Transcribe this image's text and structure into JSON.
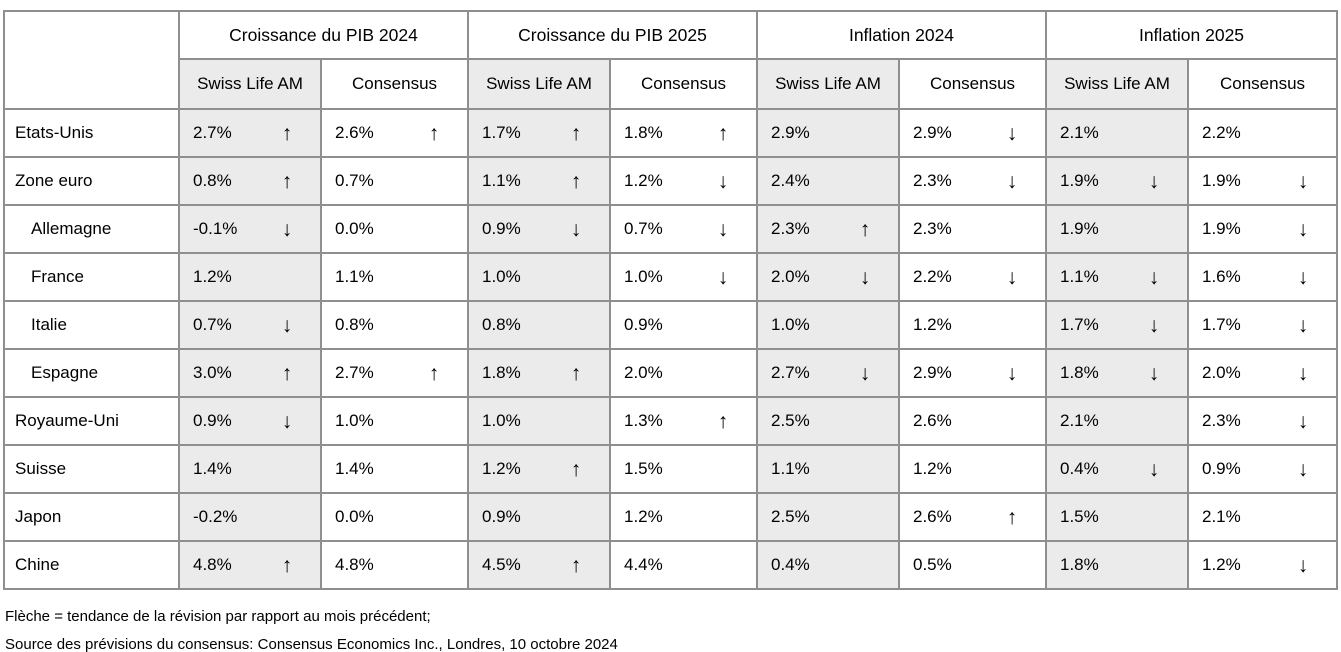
{
  "table": {
    "column_groups": [
      "Croissance du PIB 2024",
      "Croissance du PIB 2025",
      "Inflation 2024",
      "Inflation 2025"
    ],
    "subheaders": {
      "swiss_life": "Swiss Life AM",
      "consensus": "Consensus"
    },
    "rows": [
      {
        "country": "Etats-Unis",
        "indent": false,
        "cells": [
          {
            "value": "2.7%",
            "arrow": "up"
          },
          {
            "value": "2.6%",
            "arrow": "up"
          },
          {
            "value": "1.7%",
            "arrow": "up"
          },
          {
            "value": "1.8%",
            "arrow": "up"
          },
          {
            "value": "2.9%",
            "arrow": ""
          },
          {
            "value": "2.9%",
            "arrow": "down"
          },
          {
            "value": "2.1%",
            "arrow": ""
          },
          {
            "value": "2.2%",
            "arrow": ""
          }
        ]
      },
      {
        "country": "Zone euro",
        "indent": false,
        "cells": [
          {
            "value": "0.8%",
            "arrow": "up"
          },
          {
            "value": "0.7%",
            "arrow": ""
          },
          {
            "value": "1.1%",
            "arrow": "up"
          },
          {
            "value": "1.2%",
            "arrow": "down"
          },
          {
            "value": "2.4%",
            "arrow": ""
          },
          {
            "value": "2.3%",
            "arrow": "down"
          },
          {
            "value": "1.9%",
            "arrow": "down"
          },
          {
            "value": "1.9%",
            "arrow": "down"
          }
        ]
      },
      {
        "country": "Allemagne",
        "indent": true,
        "cells": [
          {
            "value": "-0.1%",
            "arrow": "down"
          },
          {
            "value": "0.0%",
            "arrow": ""
          },
          {
            "value": "0.9%",
            "arrow": "down"
          },
          {
            "value": "0.7%",
            "arrow": "down"
          },
          {
            "value": "2.3%",
            "arrow": "up"
          },
          {
            "value": "2.3%",
            "arrow": ""
          },
          {
            "value": "1.9%",
            "arrow": ""
          },
          {
            "value": "1.9%",
            "arrow": "down"
          }
        ]
      },
      {
        "country": "France",
        "indent": true,
        "cells": [
          {
            "value": "1.2%",
            "arrow": ""
          },
          {
            "value": "1.1%",
            "arrow": ""
          },
          {
            "value": "1.0%",
            "arrow": ""
          },
          {
            "value": "1.0%",
            "arrow": "down"
          },
          {
            "value": "2.0%",
            "arrow": "down"
          },
          {
            "value": "2.2%",
            "arrow": "down"
          },
          {
            "value": "1.1%",
            "arrow": "down"
          },
          {
            "value": "1.6%",
            "arrow": "down"
          }
        ]
      },
      {
        "country": "Italie",
        "indent": true,
        "cells": [
          {
            "value": "0.7%",
            "arrow": "down"
          },
          {
            "value": "0.8%",
            "arrow": ""
          },
          {
            "value": "0.8%",
            "arrow": ""
          },
          {
            "value": "0.9%",
            "arrow": ""
          },
          {
            "value": "1.0%",
            "arrow": ""
          },
          {
            "value": "1.2%",
            "arrow": ""
          },
          {
            "value": "1.7%",
            "arrow": "down"
          },
          {
            "value": "1.7%",
            "arrow": "down"
          }
        ]
      },
      {
        "country": "Espagne",
        "indent": true,
        "cells": [
          {
            "value": "3.0%",
            "arrow": "up"
          },
          {
            "value": "2.7%",
            "arrow": "up"
          },
          {
            "value": "1.8%",
            "arrow": "up"
          },
          {
            "value": "2.0%",
            "arrow": ""
          },
          {
            "value": "2.7%",
            "arrow": "down"
          },
          {
            "value": "2.9%",
            "arrow": "down"
          },
          {
            "value": "1.8%",
            "arrow": "down"
          },
          {
            "value": "2.0%",
            "arrow": "down"
          }
        ]
      },
      {
        "country": "Royaume-Uni",
        "indent": false,
        "cells": [
          {
            "value": "0.9%",
            "arrow": "down"
          },
          {
            "value": "1.0%",
            "arrow": ""
          },
          {
            "value": "1.0%",
            "arrow": ""
          },
          {
            "value": "1.3%",
            "arrow": "up"
          },
          {
            "value": "2.5%",
            "arrow": ""
          },
          {
            "value": "2.6%",
            "arrow": ""
          },
          {
            "value": "2.1%",
            "arrow": ""
          },
          {
            "value": "2.3%",
            "arrow": "down"
          }
        ]
      },
      {
        "country": "Suisse",
        "indent": false,
        "cells": [
          {
            "value": "1.4%",
            "arrow": ""
          },
          {
            "value": "1.4%",
            "arrow": ""
          },
          {
            "value": "1.2%",
            "arrow": "up"
          },
          {
            "value": "1.5%",
            "arrow": ""
          },
          {
            "value": "1.1%",
            "arrow": ""
          },
          {
            "value": "1.2%",
            "arrow": ""
          },
          {
            "value": "0.4%",
            "arrow": "down"
          },
          {
            "value": "0.9%",
            "arrow": "down"
          }
        ]
      },
      {
        "country": "Japon",
        "indent": false,
        "cells": [
          {
            "value": "-0.2%",
            "arrow": ""
          },
          {
            "value": "0.0%",
            "arrow": ""
          },
          {
            "value": "0.9%",
            "arrow": ""
          },
          {
            "value": "1.2%",
            "arrow": ""
          },
          {
            "value": "2.5%",
            "arrow": ""
          },
          {
            "value": "2.6%",
            "arrow": "up"
          },
          {
            "value": "1.5%",
            "arrow": ""
          },
          {
            "value": "2.1%",
            "arrow": ""
          }
        ]
      },
      {
        "country": "Chine",
        "indent": false,
        "cells": [
          {
            "value": "4.8%",
            "arrow": "up"
          },
          {
            "value": "4.8%",
            "arrow": ""
          },
          {
            "value": "4.5%",
            "arrow": "up"
          },
          {
            "value": "4.4%",
            "arrow": ""
          },
          {
            "value": "0.4%",
            "arrow": ""
          },
          {
            "value": "0.5%",
            "arrow": ""
          },
          {
            "value": "1.8%",
            "arrow": ""
          },
          {
            "value": "1.2%",
            "arrow": "down"
          }
        ]
      }
    ]
  },
  "icons": {
    "up": "↑",
    "down": "↓"
  },
  "colors": {
    "cell_gray": "#ebebeb",
    "border_gray": "#8f8f8f"
  },
  "footnotes": {
    "legend": "Flèche = tendance de la révision par rapport au mois précédent;",
    "source": "Source des prévisions du consensus: Consensus Economics Inc., Londres, 10 octobre 2024"
  }
}
